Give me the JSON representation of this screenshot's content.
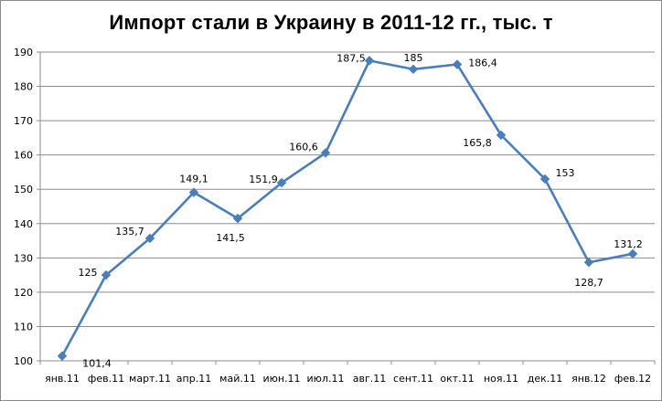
{
  "chart_data": {
    "type": "line",
    "title": "Импорт стали в Украину в 2011-12 гг., тыс. т",
    "xlabel": "",
    "ylabel": "",
    "categories": [
      "янв.11",
      "фев.11",
      "март.11",
      "апр.11",
      "май.11",
      "июн.11",
      "июл.11",
      "авг.11",
      "сент.11",
      "окт.11",
      "ноя.11",
      "дек.11",
      "янв.12",
      "фев.12"
    ],
    "values": [
      101.4,
      125,
      135.7,
      149.1,
      141.5,
      151.9,
      160.6,
      187.5,
      185,
      186.4,
      165.8,
      153,
      128.7,
      131.2
    ],
    "data_labels": [
      "101,4",
      "125",
      "135,7",
      "149,1",
      "141,5",
      "151,9",
      "160,6",
      "187,5",
      "185",
      "186,4",
      "165,8",
      "153",
      "128,7",
      "131,2"
    ],
    "ylim": [
      100,
      190
    ],
    "yticks": [
      100,
      110,
      120,
      130,
      140,
      150,
      160,
      170,
      180,
      190
    ],
    "grid": true,
    "legend": "none",
    "colors": {
      "line": "#4a7ebb",
      "grid": "#8c8c8c",
      "axis": "#8c8c8c"
    }
  }
}
